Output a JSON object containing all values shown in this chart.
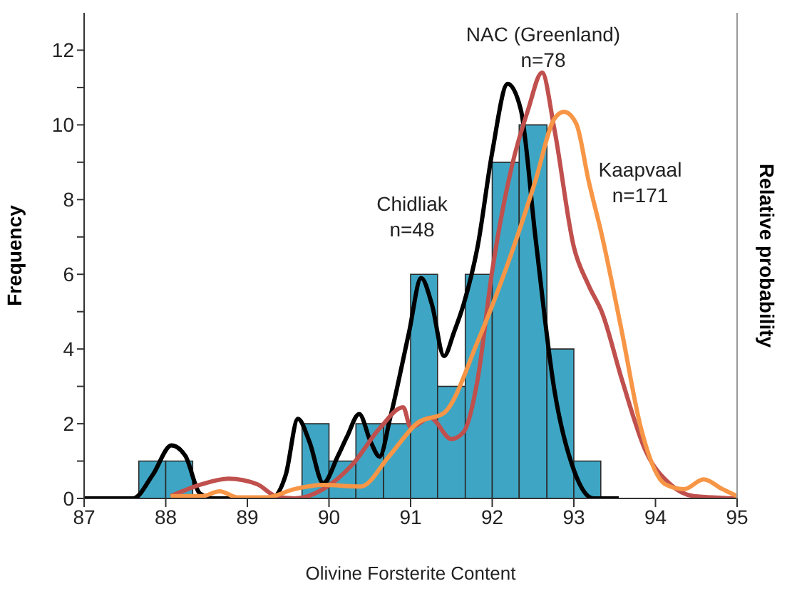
{
  "chart_data": {
    "type": "histogram",
    "xlabel": "Olivine Forsterite Content",
    "ylabel": "Frequency",
    "y2label": "Relative probability",
    "bins": [
      87.67,
      88,
      88.33,
      89.67,
      90,
      90.33,
      90.67,
      91,
      91.33,
      91.67,
      92,
      92.33,
      92.67,
      93,
      93.33
    ],
    "values": [
      1,
      1,
      0,
      2,
      1,
      2,
      2,
      6,
      3,
      6,
      9,
      10,
      4,
      1
    ],
    "color": "#3ea6c4",
    "series": [
      {
        "type": "line",
        "name": "Chidliak n=48",
        "color": "#000000",
        "x": [
          87.0,
          87.6,
          87.84,
          88.07,
          88.24,
          88.42,
          88.6,
          89.29,
          89.47,
          89.62,
          89.76,
          89.93,
          90.11,
          90.22,
          90.37,
          90.51,
          90.62,
          90.75,
          90.98,
          91.13,
          91.26,
          91.41,
          91.53,
          91.65,
          91.82,
          92.0,
          92.19,
          92.35,
          92.53,
          92.76,
          93.0,
          93.24,
          93.55
        ],
        "values": [
          0,
          0,
          0.63,
          1.42,
          1.14,
          0.13,
          0,
          0,
          0.63,
          2.13,
          1.52,
          0.41,
          1.14,
          1.65,
          2.26,
          1.52,
          1.12,
          2.16,
          4.44,
          5.9,
          5.2,
          3.81,
          4.44,
          5.2,
          6.73,
          9.27,
          11.1,
          10.41,
          6.98,
          2.92,
          0.76,
          0,
          0
        ]
      },
      {
        "type": "line",
        "name": "NAC (Greenland) n=78",
        "color": "#c0504d",
        "x": [
          88.06,
          88.44,
          88.77,
          89.12,
          89.35,
          89.58,
          89.93,
          90.28,
          90.63,
          90.91,
          91.0,
          91.24,
          91.5,
          91.65,
          91.82,
          92.0,
          92.24,
          92.44,
          92.61,
          92.76,
          93.0,
          93.18,
          93.35,
          93.59,
          93.88,
          94.18,
          94.47,
          95.0
        ],
        "values": [
          0.06,
          0.38,
          0.53,
          0.38,
          0.06,
          0,
          0.25,
          0.89,
          1.9,
          2.44,
          1.9,
          2.16,
          1.59,
          1.78,
          3.17,
          6.1,
          8.89,
          10.41,
          11.4,
          9.9,
          6.73,
          5.71,
          4.95,
          3.17,
          1.27,
          0.38,
          0.06,
          0
        ]
      },
      {
        "type": "line",
        "name": "Kaapvaal n=171",
        "color": "#f79646",
        "x": [
          88.06,
          88.44,
          88.66,
          88.88,
          89.23,
          89.58,
          89.93,
          90.39,
          90.74,
          91.09,
          91.41,
          91.82,
          92.18,
          92.53,
          92.76,
          92.88,
          93.03,
          93.18,
          93.35,
          93.59,
          93.82,
          94.12,
          94.35,
          94.59,
          94.82,
          95.0
        ],
        "values": [
          0.06,
          0.06,
          0.19,
          0.03,
          0.03,
          0.25,
          0.36,
          0.32,
          1.14,
          2.03,
          2.29,
          4.19,
          6.22,
          8.51,
          10.16,
          10.35,
          10.03,
          8.51,
          6.98,
          4.44,
          1.9,
          0.38,
          0.25,
          0.51,
          0.25,
          0.06
        ]
      }
    ],
    "xlim": [
      87,
      95
    ],
    "xticks": [
      87,
      88,
      89,
      90,
      91,
      92,
      93,
      94,
      95
    ],
    "ylim": [
      0,
      13
    ],
    "yticks": [
      0,
      {
        "value": 1,
        "label": null
      },
      2,
      {
        "value": 3,
        "label": null
      },
      4,
      {
        "value": 5,
        "label": null
      },
      6,
      {
        "value": 7,
        "label": null
      },
      8,
      {
        "value": 9,
        "label": null
      },
      10,
      {
        "value": 11,
        "label": null
      },
      12
    ],
    "grid": false,
    "legend": false,
    "marker": "none",
    "line_style": "solid"
  }
}
